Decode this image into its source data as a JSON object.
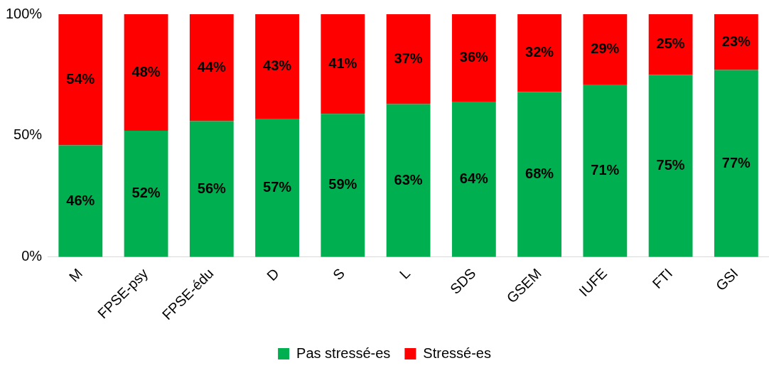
{
  "chart_data": {
    "type": "bar",
    "stacked": true,
    "categories": [
      "M",
      "FPSE-psy",
      "FPSE-édu",
      "D",
      "S",
      "L",
      "SDS",
      "GSEM",
      "IUFE",
      "FTI",
      "GSI"
    ],
    "series": [
      {
        "name": "Pas stressé-es",
        "color": "#00b050",
        "values": [
          46,
          52,
          56,
          57,
          59,
          63,
          64,
          68,
          71,
          75,
          77
        ],
        "value_labels": [
          "46%",
          "52%",
          "56%",
          "57%",
          "59%",
          "63%",
          "64%",
          "68%",
          "71%",
          "75%",
          "77%"
        ]
      },
      {
        "name": "Stressé-es",
        "color": "#ff0000",
        "values": [
          54,
          48,
          44,
          43,
          41,
          37,
          36,
          32,
          29,
          25,
          23
        ],
        "value_labels": [
          "54%",
          "48%",
          "44%",
          "43%",
          "41%",
          "37%",
          "36%",
          "32%",
          "29%",
          "25%",
          "23%"
        ]
      }
    ],
    "ylim": [
      0,
      100
    ],
    "yticks": [
      {
        "value": 0,
        "label": "0%"
      },
      {
        "value": 50,
        "label": "50%"
      },
      {
        "value": 100,
        "label": "100%"
      }
    ],
    "grid": false,
    "legend": "bottom"
  }
}
